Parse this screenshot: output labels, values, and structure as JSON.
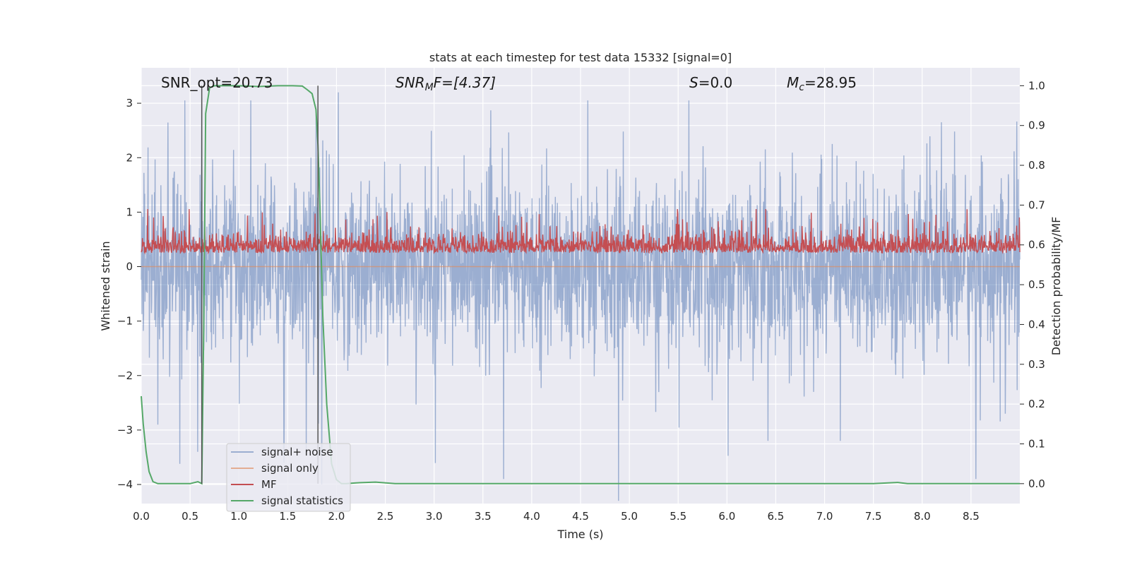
{
  "chart_data": {
    "type": "line",
    "title": "stats at each timestep for test data 15332 [signal=0]",
    "xlabel": "Time (s)",
    "ylabel": "Whitened strain",
    "y2label": "Detection probability/MF",
    "xlim": [
      0.0,
      9.0
    ],
    "ylim": [
      -4.35,
      3.65
    ],
    "y2lim": [
      -0.05,
      1.045
    ],
    "x_ticks": [
      "0.0",
      "0.5",
      "1.0",
      "1.5",
      "2.0",
      "2.5",
      "3.0",
      "3.5",
      "4.0",
      "4.5",
      "5.0",
      "5.5",
      "6.0",
      "6.5",
      "7.0",
      "7.5",
      "8.0",
      "8.5"
    ],
    "y_ticks": [
      "3",
      "2",
      "1",
      "0",
      "−1",
      "−2",
      "−3",
      "−4"
    ],
    "y2_ticks": [
      "1.0",
      "0.9",
      "0.8",
      "0.7",
      "0.6",
      "0.5",
      "0.4",
      "0.3",
      "0.2",
      "0.1",
      "0.0"
    ],
    "grid": true,
    "legend_position": "lower-left",
    "annotations": {
      "snr_opt": "SNR_opt=20.73",
      "snr_mf_italic": "SNR",
      "snr_mf_sub": "M",
      "snr_mf_rest": "F=[4.37]",
      "s_italic": "S",
      "s_rest": "=0.0",
      "mc_italic": "M",
      "mc_sub": "c",
      "mc_rest": "=28.95"
    },
    "vertical_markers": [
      0.62,
      1.81
    ],
    "series": [
      {
        "name": "signal+ noise",
        "color": "#4C72B0",
        "opacity": 0.5,
        "axis": "left",
        "noise_profile": {
          "sigma": 0.75,
          "peaks_up": [
            [
              0.62,
              3.1
            ],
            [
              1.79,
              2.8
            ],
            [
              2.02,
              3.2
            ],
            [
              4.9,
              1.3
            ]
          ],
          "peaks_down": [
            [
              0.58,
              -3.4
            ],
            [
              0.17,
              -2.9
            ],
            [
              1.46,
              -3.6
            ],
            [
              1.85,
              -4.0
            ],
            [
              4.89,
              -4.3
            ],
            [
              6.42,
              -3.2
            ],
            [
              7.16,
              -3.2
            ],
            [
              8.85,
              -2.7
            ]
          ]
        }
      },
      {
        "name": "signal only",
        "color": "#DD8452",
        "opacity": 0.6,
        "axis": "left",
        "values_const": 0.0
      },
      {
        "name": "MF",
        "color": "#C44E52",
        "axis": "right",
        "baseline": 0.58,
        "range": [
          0.55,
          0.69
        ]
      },
      {
        "name": "signal statistics",
        "color": "#55A868",
        "axis": "right",
        "x": [
          0.0,
          0.02,
          0.05,
          0.08,
          0.12,
          0.17,
          0.25,
          0.35,
          0.5,
          0.58,
          0.62,
          0.64,
          0.66,
          0.7,
          0.75,
          0.85,
          1.0,
          1.2,
          1.4,
          1.55,
          1.65,
          1.7,
          1.75,
          1.79,
          1.81,
          1.83,
          1.86,
          1.9,
          1.95,
          2.0,
          2.05,
          2.1,
          2.2,
          2.4,
          2.6,
          3.0,
          4.0,
          5.0,
          6.0,
          7.0,
          7.5,
          7.65,
          7.75,
          7.85,
          8.0,
          9.0
        ],
        "values": [
          0.22,
          0.15,
          0.08,
          0.03,
          0.005,
          0.0,
          0.0,
          0.0,
          0.0,
          0.005,
          0.0,
          0.4,
          0.93,
          0.995,
          1.0,
          1.0,
          1.0,
          0.998,
          1.0,
          1.0,
          0.999,
          0.99,
          0.98,
          0.94,
          0.85,
          0.7,
          0.42,
          0.2,
          0.05,
          0.01,
          0.0,
          0.0,
          0.002,
          0.004,
          0.0,
          0.0,
          0.0,
          0.0,
          0.0,
          0.0,
          0.0,
          0.002,
          0.003,
          0.0,
          0.0,
          0.0
        ]
      }
    ]
  },
  "colors": {
    "plot_bg": "#EAEAF2",
    "grid": "#FFFFFF",
    "marker_line": "#555555"
  }
}
